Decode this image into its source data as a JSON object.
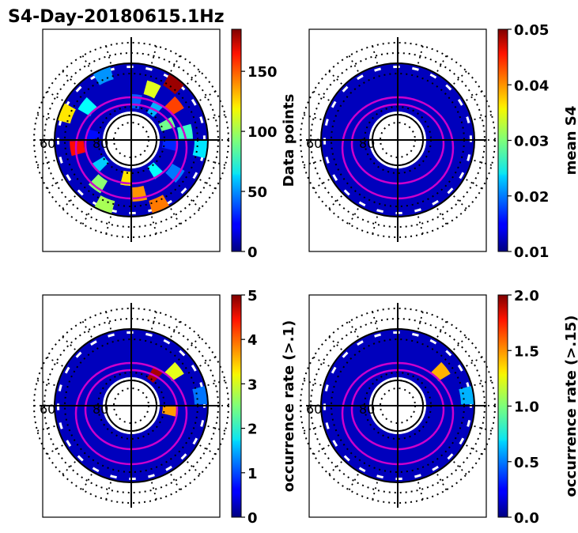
{
  "chart_data": {
    "title": "S4-Day-20180615.1Hz",
    "type": "heatmap",
    "projection": "polar (magnetic latitude / local time)",
    "radial_labels": [
      "60",
      "80"
    ],
    "panels": [
      {
        "id": "data-points",
        "colorbar": {
          "label": "Data points",
          "range": [
            0,
            185
          ],
          "ticks": [
            "0",
            "50",
            "100",
            "150"
          ],
          "tick_values": [
            0,
            50,
            100,
            150
          ]
        },
        "bins": [
          {
            "ring": 0,
            "sector": 0,
            "value": 40
          },
          {
            "ring": 0,
            "sector": 2,
            "value": 55
          },
          {
            "ring": 0,
            "sector": 4,
            "value": 90
          },
          {
            "ring": 0,
            "sector": 6,
            "value": 30
          },
          {
            "ring": 0,
            "sector": 9,
            "value": 70
          },
          {
            "ring": 0,
            "sector": 12,
            "value": 120
          },
          {
            "ring": 0,
            "sector": 15,
            "value": 60
          },
          {
            "ring": 0,
            "sector": 18,
            "value": 25
          },
          {
            "ring": 1,
            "sector": 1,
            "value": 110
          },
          {
            "ring": 1,
            "sector": 3,
            "value": 150
          },
          {
            "ring": 1,
            "sector": 5,
            "value": 80
          },
          {
            "ring": 1,
            "sector": 8,
            "value": 45
          },
          {
            "ring": 1,
            "sector": 11,
            "value": 135
          },
          {
            "ring": 1,
            "sector": 14,
            "value": 95
          },
          {
            "ring": 1,
            "sector": 17,
            "value": 160
          },
          {
            "ring": 1,
            "sector": 20,
            "value": 70
          },
          {
            "ring": 2,
            "sector": 2,
            "value": 180
          },
          {
            "ring": 2,
            "sector": 6,
            "value": 65
          },
          {
            "ring": 2,
            "sector": 10,
            "value": 140
          },
          {
            "ring": 2,
            "sector": 13,
            "value": 100
          },
          {
            "ring": 2,
            "sector": 19,
            "value": 120
          },
          {
            "ring": 2,
            "sector": 22,
            "value": 50
          }
        ]
      },
      {
        "id": "mean-s4",
        "colorbar": {
          "label": "mean S4",
          "range": [
            0.01,
            0.05
          ],
          "ticks": [
            "0.01",
            "0.02",
            "0.03",
            "0.04",
            "0.05"
          ],
          "tick_values": [
            0.01,
            0.02,
            0.03,
            0.04,
            0.05
          ]
        },
        "bins": []
      },
      {
        "id": "occurrence-rate-01",
        "colorbar": {
          "label": "occurrence rate (>.1)",
          "range": [
            0,
            5
          ],
          "ticks": [
            "0",
            "1",
            "2",
            "3",
            "4",
            "5"
          ],
          "tick_values": [
            0,
            1,
            2,
            3,
            4,
            5
          ]
        },
        "bins": [
          {
            "ring": 0,
            "sector": 2,
            "value": 4.8
          },
          {
            "ring": 1,
            "sector": 3,
            "value": 3.0
          },
          {
            "ring": 0,
            "sector": 6,
            "value": 3.6
          },
          {
            "ring": 2,
            "sector": 5,
            "value": 1.2
          }
        ]
      },
      {
        "id": "occurrence-rate-015",
        "colorbar": {
          "label": "occurrence rate (>.15)",
          "range": [
            0,
            2
          ],
          "ticks": [
            "0.0",
            "0.5",
            "1.0",
            "1.5",
            "2.0"
          ],
          "tick_values": [
            0,
            0.5,
            1.0,
            1.5,
            2.0
          ]
        },
        "bins": [
          {
            "ring": 1,
            "sector": 3,
            "value": 1.4
          },
          {
            "ring": 2,
            "sector": 5,
            "value": 0.6
          }
        ]
      }
    ]
  }
}
